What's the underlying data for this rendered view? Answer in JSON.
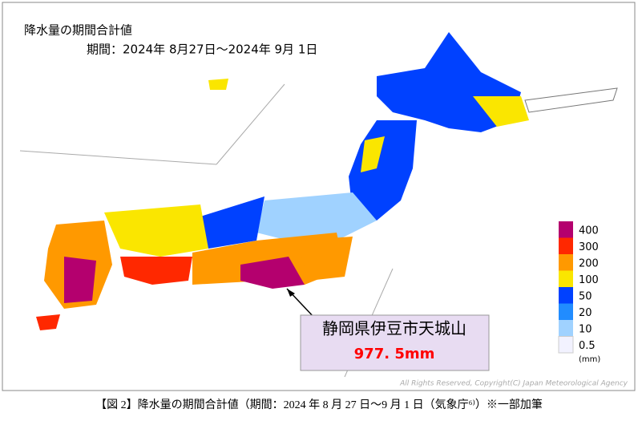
{
  "header": {
    "title": "降水量の期間合計値",
    "period": "期間：2024年 8月27日～2024年 9月 1日"
  },
  "legend": {
    "unit": "(mm)",
    "items": [
      {
        "label": "400",
        "color": "#b4006e"
      },
      {
        "label": "300",
        "color": "#ff2800"
      },
      {
        "label": "200",
        "color": "#ff9900"
      },
      {
        "label": "100",
        "color": "#fae600"
      },
      {
        "label": "50",
        "color": "#0041ff"
      },
      {
        "label": "20",
        "color": "#218cff"
      },
      {
        "label": "10",
        "color": "#a0d2ff"
      },
      {
        "label": "0.5",
        "color": "#f2f2ff"
      }
    ]
  },
  "callout": {
    "place": "静岡県伊豆市天城山",
    "amount": "977. 5mm"
  },
  "copyright": "All Rights Reserved, Copyright(C) Japan Meteorological Agency",
  "caption": "【図 2】降水量の期間合計値（期間：2024 年 8 月 27 日～9 月 1 日（気象庁⁶⁾）※一部加筆"
}
